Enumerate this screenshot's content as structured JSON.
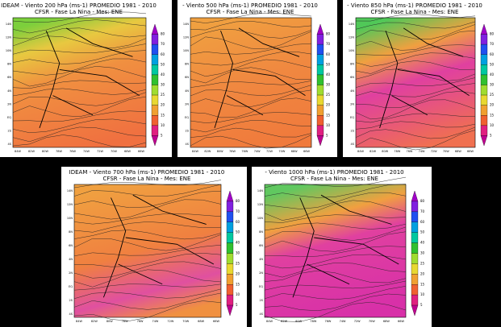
{
  "panels": [
    {
      "title": "IDEAM - Viento 200 hPa (ms-1)  PROMEDIO 1981 - 2010",
      "subtitle": "CFSR - Fase La Nina - Mes: ENE"
    },
    {
      "title": "- Viento 500 hPa (ms-1)  PROMEDIO 1981 - 2010",
      "subtitle": "CFSR - Fase La Nina - Mes: ENE"
    },
    {
      "title": "- Viento 850 hPa (ms-1)  PROMEDIO 1981 - 2010",
      "subtitle": "CFSR - Fase La Nina - Mes: ENE"
    },
    {
      "title": "IDEAM - Viento 700 hPa (ms-1)  PROMEDIO 1981 - 2010",
      "subtitle": "CFSR - Fase La Nina - Mes: ENE"
    },
    {
      "title": "- Viento 1000 hPa (ms-1)  PROMEDIO 1981 - 2010",
      "subtitle": "CFSR - Fase La Nina - Mes: ENE"
    }
  ],
  "colorbar": [
    "80",
    "70",
    "60",
    "50",
    "40",
    "30",
    "25",
    "20",
    "15",
    "10",
    "5"
  ],
  "lat_labels": [
    "14N",
    "12N",
    "10N",
    "8N",
    "6N",
    "4N",
    "2N",
    "EQ",
    "2S",
    "4S"
  ],
  "lon_labels": [
    "84W",
    "82W",
    "80W",
    "78W",
    "76W",
    "74W",
    "72W",
    "70W",
    "68W",
    "66W"
  ]
}
